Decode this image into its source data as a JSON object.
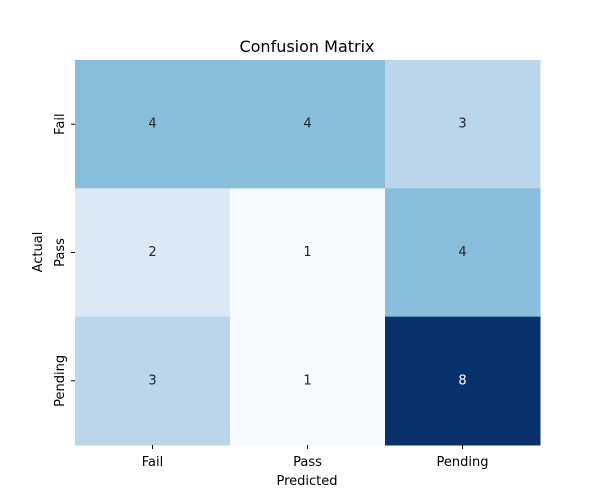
{
  "chart_data": {
    "type": "heatmap",
    "title": "Confusion Matrix",
    "xlabel": "Predicted",
    "ylabel": "Actual",
    "x_categories": [
      "Fail",
      "Pass",
      "Pending"
    ],
    "y_categories": [
      "Fail",
      "Pass",
      "Pending"
    ],
    "values": [
      [
        4,
        4,
        3
      ],
      [
        2,
        1,
        4
      ],
      [
        3,
        1,
        8
      ]
    ],
    "colormap": "Blues",
    "value_range": [
      1,
      8
    ],
    "grid": false,
    "colorbar": false
  }
}
